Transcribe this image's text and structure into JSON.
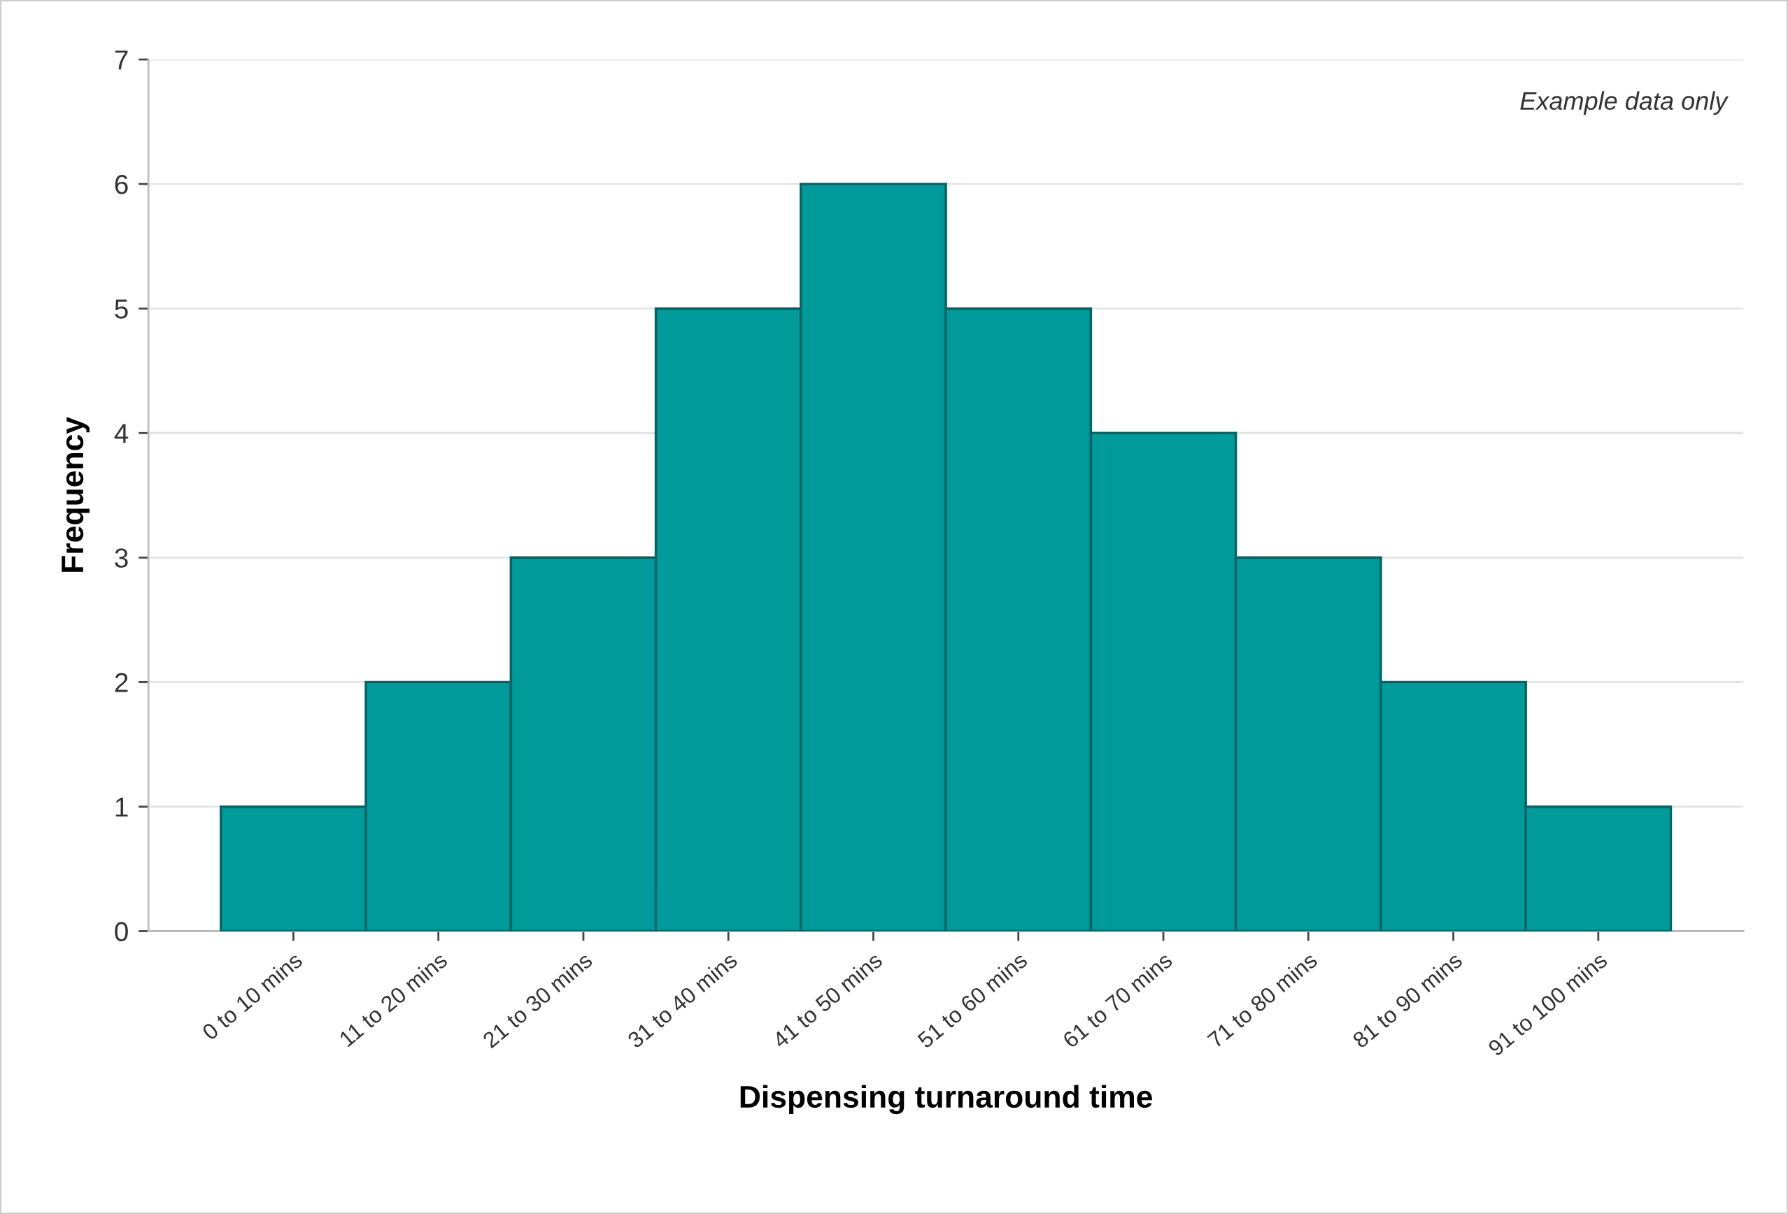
{
  "chart_data": {
    "type": "bar",
    "xlabel": "Dispensing turnaround time",
    "ylabel": "Frequency",
    "categories": [
      "0 to 10 mins",
      "11 to 20 mins",
      "21 to 30 mins",
      "31 to 40 mins",
      "41 to 50 mins",
      "51 to 60 mins",
      "61 to 70 mins",
      "71 to 80 mins",
      "81 to 90 mins",
      "91 to 100 mins"
    ],
    "values": [
      1,
      2,
      3,
      5,
      6,
      5,
      4,
      3,
      2,
      1
    ],
    "color": "#009a9a",
    "ylim": [
      0,
      7
    ],
    "yticks": [
      0,
      1,
      2,
      3,
      4,
      5,
      6,
      7
    ],
    "grid": "y",
    "legend": false,
    "annotations": [
      "Example data only"
    ]
  }
}
